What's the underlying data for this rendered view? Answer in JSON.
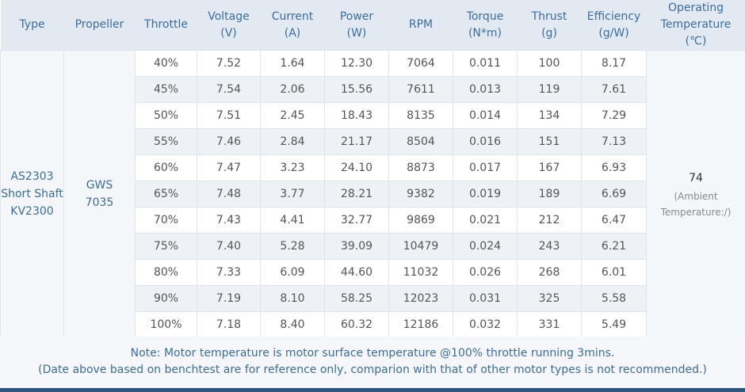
{
  "table": {
    "header": [
      [
        "Type"
      ],
      [
        "Propeller"
      ],
      [
        "Throttle"
      ],
      [
        "Voltage",
        "(V)"
      ],
      [
        "Current",
        "(A)"
      ],
      [
        "Power",
        "(W)"
      ],
      [
        "RPM"
      ],
      [
        "Torque",
        "(N*m)"
      ],
      [
        "Thrust",
        "(g)"
      ],
      [
        "Efficiency",
        "(g/W)"
      ],
      [
        "Operating",
        "Temperature",
        "(℃)"
      ]
    ],
    "motor": [
      "AS2303",
      "Short Shaft",
      "KV2300"
    ],
    "propeller": [
      "GWS",
      "7035"
    ],
    "rows": [
      [
        "40%",
        "7.52",
        "1.64",
        "12.30",
        "7064",
        "0.011",
        "100",
        "8.17"
      ],
      [
        "45%",
        "7.54",
        "2.06",
        "15.56",
        "7611",
        "0.013",
        "119",
        "7.61"
      ],
      [
        "50%",
        "7.51",
        "2.45",
        "18.43",
        "8135",
        "0.014",
        "134",
        "7.29"
      ],
      [
        "55%",
        "7.46",
        "2.84",
        "21.17",
        "8504",
        "0.016",
        "151",
        "7.13"
      ],
      [
        "60%",
        "7.47",
        "3.23",
        "24.10",
        "8873",
        "0.017",
        "167",
        "6.93"
      ],
      [
        "65%",
        "7.48",
        "3.77",
        "28.21",
        "9382",
        "0.019",
        "189",
        "6.69"
      ],
      [
        "70%",
        "7.43",
        "4.41",
        "32.77",
        "9869",
        "0.021",
        "212",
        "6.47"
      ],
      [
        "75%",
        "7.40",
        "5.28",
        "39.09",
        "10479",
        "0.024",
        "243",
        "6.21"
      ],
      [
        "80%",
        "7.33",
        "6.09",
        "44.60",
        "11032",
        "0.026",
        "268",
        "6.01"
      ],
      [
        "90%",
        "7.19",
        "8.10",
        "58.25",
        "12023",
        "0.031",
        "325",
        "5.58"
      ],
      [
        "100%",
        "7.18",
        "8.40",
        "60.32",
        "12186",
        "0.032",
        "331",
        "5.49"
      ]
    ],
    "temperature": {
      "value": "74",
      "note": [
        "(Ambient",
        "Temperature:/)"
      ]
    }
  },
  "note": [
    "Note: Motor temperature is motor surface temperature @100% throttle running 3mins.",
    "(Date above based on benchtest are for reference only, comparion with that of other motor types is not recommended.)"
  ]
}
